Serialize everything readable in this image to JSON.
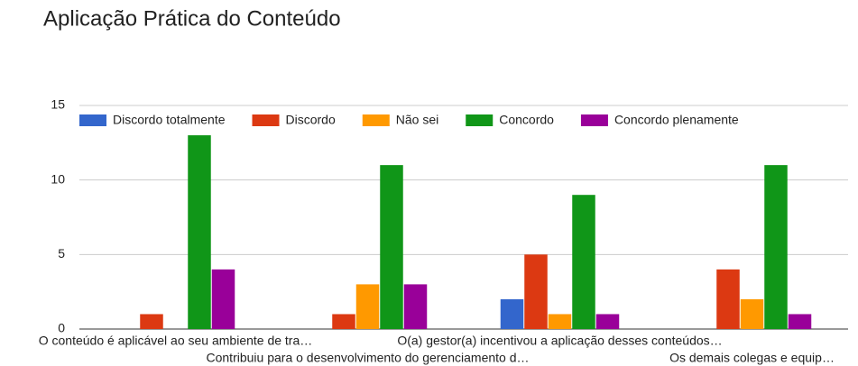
{
  "chart_data": {
    "type": "bar",
    "title": "Aplicação Prática do Conteúdo",
    "categories": [
      "O conteúdo é aplicável ao seu ambiente de tra…",
      "Contribuiu para o desenvolvimento do gerenciamento d…",
      "O(a) gestor(a) incentivou a aplicação desses conteúdos…",
      "Os demais colegas e equip…"
    ],
    "series": [
      {
        "name": "Discordo totalmente",
        "color": "#3366cc",
        "values": [
          0,
          0,
          2,
          0
        ]
      },
      {
        "name": "Discordo",
        "color": "#dc3912",
        "values": [
          1,
          1,
          5,
          4
        ]
      },
      {
        "name": "Não sei",
        "color": "#ff9900",
        "values": [
          0,
          3,
          1,
          2
        ]
      },
      {
        "name": "Concordo",
        "color": "#109618",
        "values": [
          13,
          11,
          9,
          11
        ]
      },
      {
        "name": "Concordo plenamente",
        "color": "#990099",
        "values": [
          4,
          3,
          1,
          1
        ]
      }
    ],
    "ylim": [
      0,
      15
    ],
    "yticks": [
      0,
      5,
      10,
      15
    ],
    "grid": true,
    "legend": "top"
  }
}
